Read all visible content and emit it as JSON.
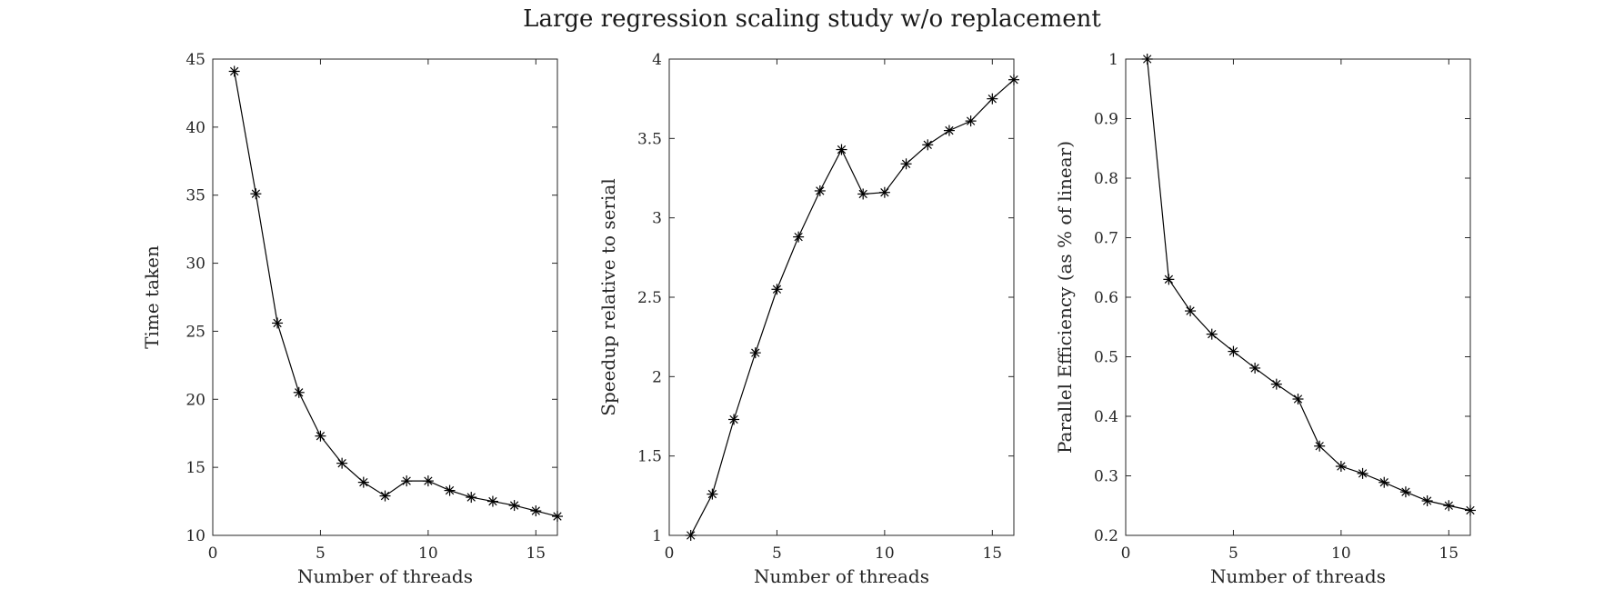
{
  "figure": {
    "title": "Large regression scaling study w/o replacement"
  },
  "chart_data": [
    {
      "type": "line",
      "marker": "asterisk",
      "color": "#000000",
      "title": "",
      "xlabel": "Number of threads",
      "ylabel": "Time taken",
      "xlim": [
        0,
        16
      ],
      "ylim": [
        10,
        45
      ],
      "xticks": [
        0,
        5,
        10,
        15
      ],
      "yticks": [
        10,
        15,
        20,
        25,
        30,
        35,
        40,
        45
      ],
      "x": [
        1,
        2,
        3,
        4,
        5,
        6,
        7,
        8,
        9,
        10,
        11,
        12,
        13,
        14,
        15,
        16
      ],
      "y": [
        44.1,
        35.1,
        25.6,
        20.5,
        17.3,
        15.3,
        13.9,
        12.9,
        14.0,
        14.0,
        13.3,
        12.8,
        12.5,
        12.2,
        11.8,
        11.4
      ]
    },
    {
      "type": "line",
      "marker": "asterisk",
      "color": "#000000",
      "title": "",
      "xlabel": "Number of threads",
      "ylabel": "Speedup relative to serial",
      "xlim": [
        0,
        16
      ],
      "ylim": [
        1,
        4
      ],
      "xticks": [
        0,
        5,
        10,
        15
      ],
      "yticks": [
        1,
        1.5,
        2,
        2.5,
        3,
        3.5,
        4
      ],
      "x": [
        1,
        2,
        3,
        4,
        5,
        6,
        7,
        8,
        9,
        10,
        11,
        12,
        13,
        14,
        15,
        16
      ],
      "y": [
        1.0,
        1.26,
        1.73,
        2.15,
        2.55,
        2.88,
        3.17,
        3.43,
        3.15,
        3.16,
        3.34,
        3.46,
        3.55,
        3.61,
        3.75,
        3.87
      ]
    },
    {
      "type": "line",
      "marker": "asterisk",
      "color": "#000000",
      "title": "",
      "xlabel": "Number of threads",
      "ylabel": "Parallel Efficiency (as % of linear)",
      "xlim": [
        0,
        16
      ],
      "ylim": [
        0.2,
        1
      ],
      "xticks": [
        0,
        5,
        10,
        15
      ],
      "yticks": [
        0.2,
        0.3,
        0.4,
        0.5,
        0.6,
        0.7,
        0.8,
        0.9,
        1
      ],
      "x": [
        1,
        2,
        3,
        4,
        5,
        6,
        7,
        8,
        9,
        10,
        11,
        12,
        13,
        14,
        15,
        16
      ],
      "y": [
        1.0,
        0.63,
        0.577,
        0.538,
        0.509,
        0.481,
        0.454,
        0.429,
        0.35,
        0.316,
        0.304,
        0.289,
        0.273,
        0.258,
        0.25,
        0.242
      ]
    }
  ]
}
